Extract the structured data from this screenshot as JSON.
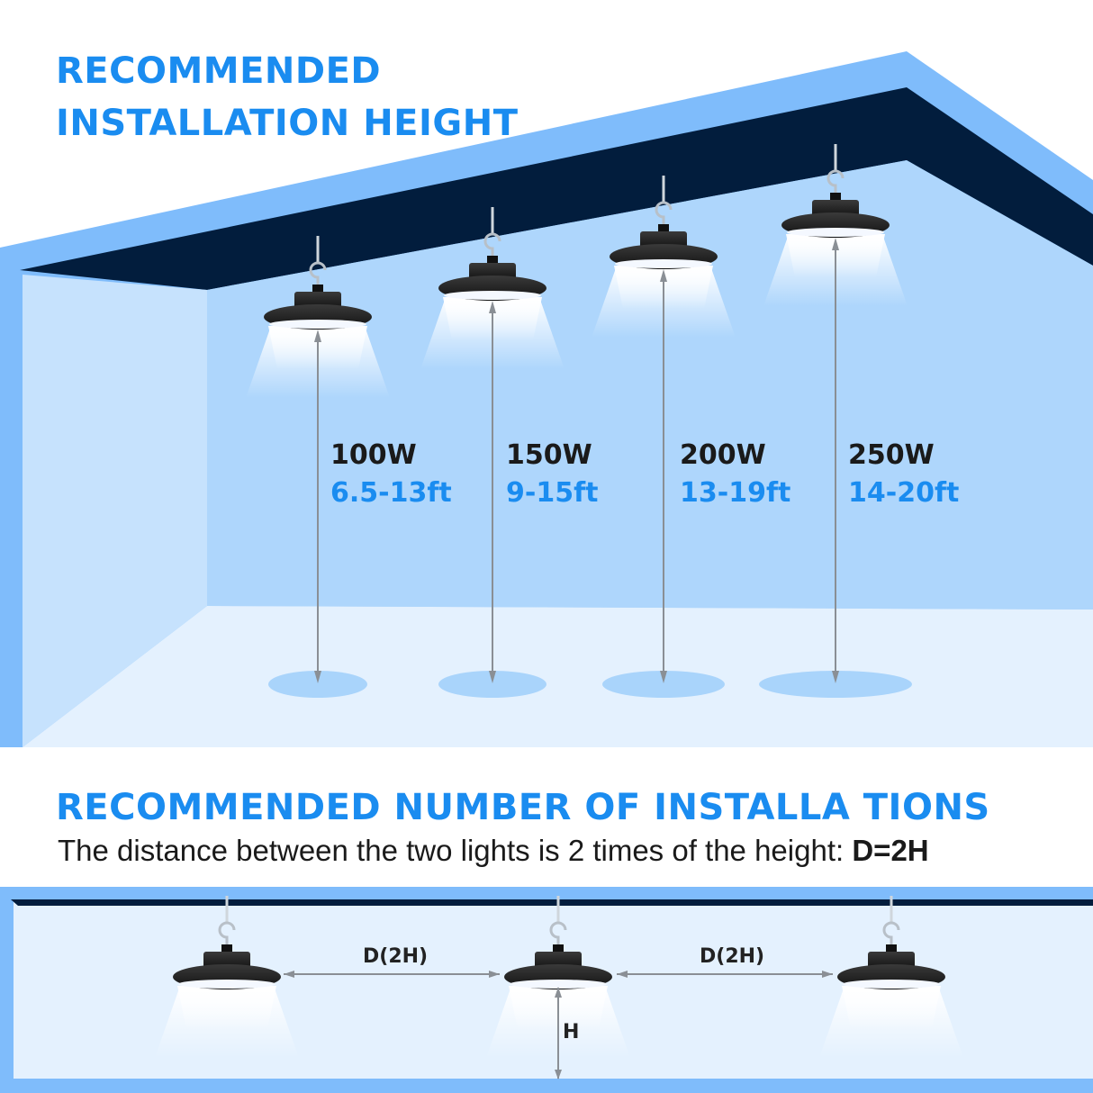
{
  "title1_line1": "RECOMMENDED",
  "title1_line2": "INSTALLATION HEIGHT",
  "lights": [
    {
      "watt": "100W",
      "range": "6.5-13ft"
    },
    {
      "watt": "150W",
      "range": "9-15ft"
    },
    {
      "watt": "200W",
      "range": "13-19ft"
    },
    {
      "watt": "250W",
      "range": "14-20ft"
    }
  ],
  "title2": "RECOMMENDED NUMBER OF INSTALLA TIONS",
  "subtitle": "The distance between the two lights is 2 times of the height: ",
  "formula": "D=2H",
  "spacing_label_1": "D(2H)",
  "spacing_label_2": "D(2H)",
  "height_label": "H",
  "colors": {
    "accent": "#1a8cf0",
    "ceiling": "#021d3d",
    "frame": "#7fbcfb",
    "back_wall": "#aed6fc",
    "side_wall": "#c6e2fd",
    "floor": "#e4f1fe"
  }
}
